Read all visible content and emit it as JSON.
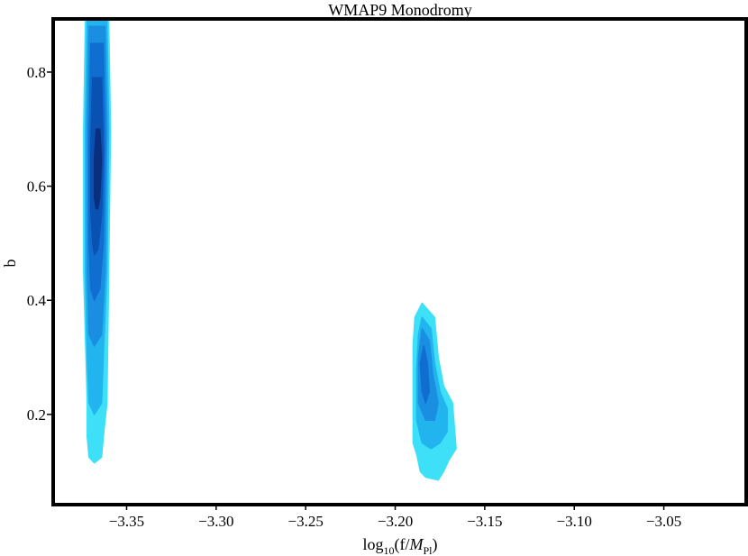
{
  "chart_data": {
    "type": "contour",
    "title": "WMAP9 Monodromy",
    "xlabel": "log10(f/MPl)",
    "ylabel": "b",
    "xlim": [
      -3.39,
      -3.005
    ],
    "ylim": [
      0.045,
      0.89
    ],
    "xticks": [
      -3.35,
      -3.3,
      -3.25,
      -3.2,
      -3.15,
      -3.1,
      -3.05
    ],
    "xtick_labels": [
      "−3.35",
      "−3.30",
      "−3.25",
      "−3.20",
      "−3.15",
      "−3.10",
      "−3.05"
    ],
    "yticks": [
      0.2,
      0.4,
      0.6,
      0.8
    ],
    "ytick_labels": [
      "0.2",
      "0.4",
      "0.6",
      "0.8"
    ],
    "levels": [
      "#3ee0f8",
      "#22b4ef",
      "#1a8fe2",
      "#0f6ed0",
      "#0a52b2",
      "#0a2f7e"
    ],
    "regions": [
      {
        "name": "left-peak",
        "center_x": -3.367,
        "center_y": 0.6,
        "contours": [
          {
            "level": 0,
            "points": [
              [
                -3.373,
                0.89
              ],
              [
                -3.36,
                0.89
              ],
              [
                -3.359,
                0.7
              ],
              [
                -3.36,
                0.45
              ],
              [
                -3.361,
                0.22
              ],
              [
                -3.363,
                0.16
              ],
              [
                -3.364,
                0.125
              ],
              [
                -3.368,
                0.115
              ],
              [
                -3.371,
                0.125
              ],
              [
                -3.372,
                0.16
              ],
              [
                -3.372,
                0.22
              ],
              [
                -3.374,
                0.45
              ],
              [
                -3.374,
                0.7
              ]
            ]
          },
          {
            "level": 1,
            "points": [
              [
                -3.372,
                0.89
              ],
              [
                -3.361,
                0.89
              ],
              [
                -3.36,
                0.7
              ],
              [
                -3.361,
                0.45
              ],
              [
                -3.363,
                0.3
              ],
              [
                -3.364,
                0.22
              ],
              [
                -3.368,
                0.2
              ],
              [
                -3.371,
                0.22
              ],
              [
                -3.372,
                0.3
              ],
              [
                -3.373,
                0.45
              ],
              [
                -3.373,
                0.7
              ]
            ]
          },
          {
            "level": 2,
            "points": [
              [
                -3.371,
                0.88
              ],
              [
                -3.362,
                0.88
              ],
              [
                -3.361,
                0.7
              ],
              [
                -3.362,
                0.45
              ],
              [
                -3.364,
                0.34
              ],
              [
                -3.368,
                0.32
              ],
              [
                -3.371,
                0.34
              ],
              [
                -3.372,
                0.45
              ],
              [
                -3.372,
                0.7
              ]
            ]
          },
          {
            "level": 3,
            "points": [
              [
                -3.37,
                0.85
              ],
              [
                -3.363,
                0.85
              ],
              [
                -3.362,
                0.68
              ],
              [
                -3.363,
                0.5
              ],
              [
                -3.365,
                0.42
              ],
              [
                -3.368,
                0.4
              ],
              [
                -3.37,
                0.42
              ],
              [
                -3.371,
                0.5
              ],
              [
                -3.371,
                0.68
              ]
            ]
          },
          {
            "level": 4,
            "points": [
              [
                -3.369,
                0.79
              ],
              [
                -3.364,
                0.79
              ],
              [
                -3.363,
                0.66
              ],
              [
                -3.364,
                0.55
              ],
              [
                -3.366,
                0.49
              ],
              [
                -3.368,
                0.48
              ],
              [
                -3.369,
                0.5
              ],
              [
                -3.37,
                0.56
              ],
              [
                -3.37,
                0.66
              ]
            ]
          },
          {
            "level": 5,
            "points": [
              [
                -3.367,
                0.7
              ],
              [
                -3.365,
                0.7
              ],
              [
                -3.364,
                0.65
              ],
              [
                -3.365,
                0.58
              ],
              [
                -3.366,
                0.56
              ],
              [
                -3.367,
                0.56
              ],
              [
                -3.368,
                0.58
              ],
              [
                -3.368,
                0.65
              ]
            ]
          }
        ]
      },
      {
        "name": "right-peak",
        "center_x": -3.183,
        "center_y": 0.26,
        "contours": [
          {
            "level": 0,
            "points": [
              [
                -3.185,
                0.395
              ],
              [
                -3.178,
                0.37
              ],
              [
                -3.176,
                0.3
              ],
              [
                -3.173,
                0.25
              ],
              [
                -3.168,
                0.22
              ],
              [
                -3.167,
                0.18
              ],
              [
                -3.166,
                0.14
              ],
              [
                -3.17,
                0.12
              ],
              [
                -3.173,
                0.1
              ],
              [
                -3.176,
                0.085
              ],
              [
                -3.183,
                0.09
              ],
              [
                -3.186,
                0.1
              ],
              [
                -3.188,
                0.13
              ],
              [
                -3.19,
                0.15
              ],
              [
                -3.19,
                0.24
              ],
              [
                -3.19,
                0.32
              ],
              [
                -3.189,
                0.37
              ]
            ]
          },
          {
            "level": 1,
            "points": [
              [
                -3.185,
                0.37
              ],
              [
                -3.18,
                0.35
              ],
              [
                -3.178,
                0.29
              ],
              [
                -3.175,
                0.24
              ],
              [
                -3.171,
                0.21
              ],
              [
                -3.171,
                0.17
              ],
              [
                -3.175,
                0.15
              ],
              [
                -3.18,
                0.14
              ],
              [
                -3.185,
                0.15
              ],
              [
                -3.188,
                0.19
              ],
              [
                -3.188,
                0.28
              ],
              [
                -3.187,
                0.34
              ]
            ]
          },
          {
            "level": 2,
            "points": [
              [
                -3.185,
                0.35
              ],
              [
                -3.181,
                0.33
              ],
              [
                -3.179,
                0.27
              ],
              [
                -3.176,
                0.22
              ],
              [
                -3.178,
                0.19
              ],
              [
                -3.183,
                0.19
              ],
              [
                -3.187,
                0.22
              ],
              [
                -3.187,
                0.3
              ]
            ]
          },
          {
            "level": 3,
            "points": [
              [
                -3.184,
                0.32
              ],
              [
                -3.182,
                0.29
              ],
              [
                -3.181,
                0.24
              ],
              [
                -3.183,
                0.22
              ],
              [
                -3.185,
                0.24
              ],
              [
                -3.186,
                0.29
              ]
            ]
          }
        ]
      }
    ]
  }
}
